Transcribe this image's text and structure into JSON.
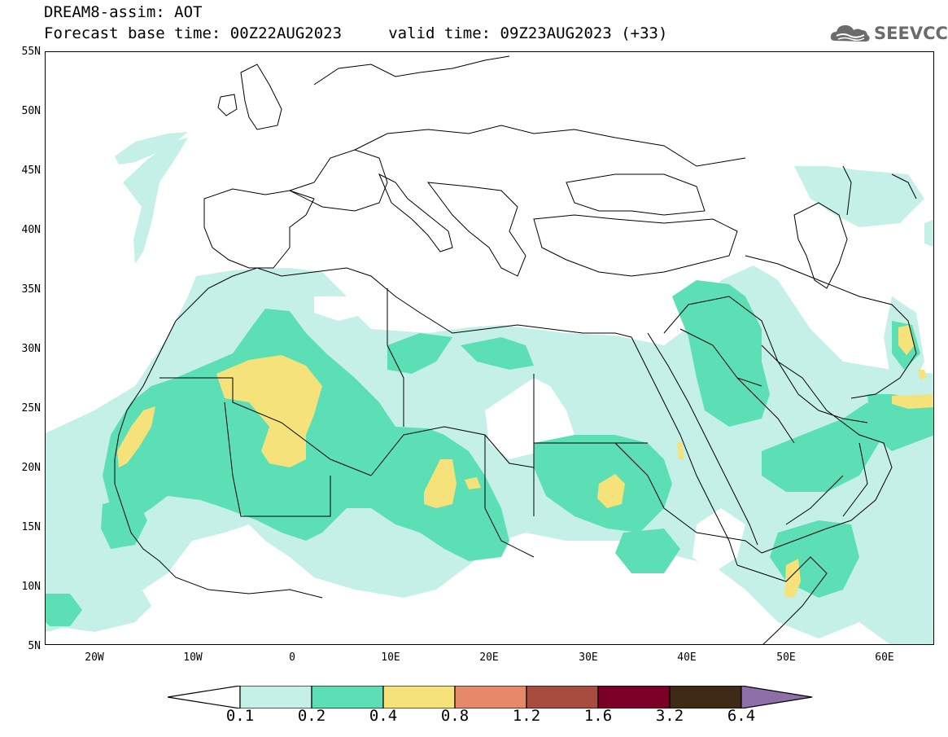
{
  "header": {
    "title_line1": "DREAM8-assim: AOT",
    "title_line2": "Forecast base time: 00Z22AUG2023     valid time: 09Z23AUG2023 (+33)"
  },
  "logo": {
    "text": "SEEVCCC",
    "icon": "cloud-icon",
    "color": "#6b6b6b"
  },
  "map": {
    "variable": "AOT",
    "lat_range": [
      5,
      55
    ],
    "lon_range": [
      -25,
      65
    ],
    "lat_labels": [
      "55N",
      "50N",
      "45N",
      "40N",
      "35N",
      "30N",
      "25N",
      "20N",
      "15N",
      "10N",
      "5N"
    ],
    "lon_labels": [
      "20W",
      "10W",
      "0",
      "10E",
      "20E",
      "30E",
      "40E",
      "50E",
      "60E"
    ]
  },
  "colorbar": {
    "labels": [
      "0.1",
      "0.2",
      "0.4",
      "0.8",
      "1.2",
      "1.6",
      "3.2",
      "6.4"
    ],
    "colors": [
      "#ffffff",
      "#c4f0e8",
      "#5ddfb6",
      "#f5e27a",
      "#e5896a",
      "#a94c40",
      "#7a0028",
      "#3f2a15",
      "#8f6fa8"
    ]
  }
}
